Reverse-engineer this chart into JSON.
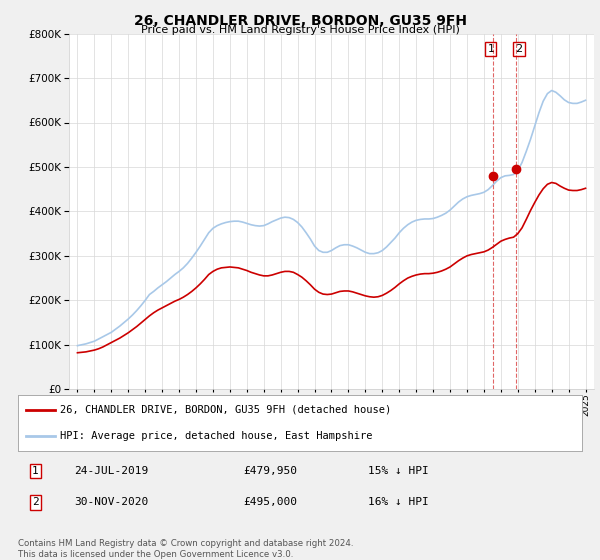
{
  "title": "26, CHANDLER DRIVE, BORDON, GU35 9FH",
  "subtitle": "Price paid vs. HM Land Registry's House Price Index (HPI)",
  "hpi_label": "HPI: Average price, detached house, East Hampshire",
  "price_label": "26, CHANDLER DRIVE, BORDON, GU35 9FH (detached house)",
  "legend1_date": "24-JUL-2019",
  "legend1_price": "£479,950",
  "legend1_hpi": "15% ↓ HPI",
  "legend2_date": "30-NOV-2020",
  "legend2_price": "£495,000",
  "legend2_hpi": "16% ↓ HPI",
  "footer": "Contains HM Land Registry data © Crown copyright and database right 2024.\nThis data is licensed under the Open Government Licence v3.0.",
  "hpi_color": "#a8c8e8",
  "price_color": "#cc0000",
  "vline_color": "#cc0000",
  "point1_x": 2019.56,
  "point1_y": 479950,
  "point2_x": 2020.92,
  "point2_y": 495000,
  "ylim": [
    0,
    800000
  ],
  "xlim_start": 1994.5,
  "xlim_end": 2025.5,
  "background_color": "#f0f0f0",
  "plot_background": "#ffffff",
  "hpi_x": [
    1995.0,
    1995.25,
    1995.5,
    1995.75,
    1996.0,
    1996.25,
    1996.5,
    1996.75,
    1997.0,
    1997.25,
    1997.5,
    1997.75,
    1998.0,
    1998.25,
    1998.5,
    1998.75,
    1999.0,
    1999.25,
    1999.5,
    1999.75,
    2000.0,
    2000.25,
    2000.5,
    2000.75,
    2001.0,
    2001.25,
    2001.5,
    2001.75,
    2002.0,
    2002.25,
    2002.5,
    2002.75,
    2003.0,
    2003.25,
    2003.5,
    2003.75,
    2004.0,
    2004.25,
    2004.5,
    2004.75,
    2005.0,
    2005.25,
    2005.5,
    2005.75,
    2006.0,
    2006.25,
    2006.5,
    2006.75,
    2007.0,
    2007.25,
    2007.5,
    2007.75,
    2008.0,
    2008.25,
    2008.5,
    2008.75,
    2009.0,
    2009.25,
    2009.5,
    2009.75,
    2010.0,
    2010.25,
    2010.5,
    2010.75,
    2011.0,
    2011.25,
    2011.5,
    2011.75,
    2012.0,
    2012.25,
    2012.5,
    2012.75,
    2013.0,
    2013.25,
    2013.5,
    2013.75,
    2014.0,
    2014.25,
    2014.5,
    2014.75,
    2015.0,
    2015.25,
    2015.5,
    2015.75,
    2016.0,
    2016.25,
    2016.5,
    2016.75,
    2017.0,
    2017.25,
    2017.5,
    2017.75,
    2018.0,
    2018.25,
    2018.5,
    2018.75,
    2019.0,
    2019.25,
    2019.5,
    2019.75,
    2020.0,
    2020.25,
    2020.5,
    2020.75,
    2021.0,
    2021.25,
    2021.5,
    2021.75,
    2022.0,
    2022.25,
    2022.5,
    2022.75,
    2023.0,
    2023.25,
    2023.5,
    2023.75,
    2024.0,
    2024.25,
    2024.5,
    2024.75,
    2025.0
  ],
  "hpi_y": [
    98000,
    100000,
    102000,
    105000,
    108000,
    113000,
    118000,
    123000,
    128000,
    135000,
    142000,
    150000,
    158000,
    167000,
    177000,
    188000,
    200000,
    213000,
    220000,
    228000,
    235000,
    242000,
    250000,
    258000,
    265000,
    273000,
    283000,
    295000,
    308000,
    322000,
    337000,
    352000,
    362000,
    368000,
    372000,
    375000,
    377000,
    378000,
    378000,
    376000,
    373000,
    370000,
    368000,
    367000,
    368000,
    372000,
    377000,
    381000,
    385000,
    387000,
    386000,
    382000,
    375000,
    365000,
    352000,
    338000,
    322000,
    312000,
    308000,
    308000,
    312000,
    318000,
    323000,
    325000,
    325000,
    322000,
    318000,
    313000,
    308000,
    305000,
    305000,
    307000,
    312000,
    320000,
    330000,
    340000,
    352000,
    362000,
    370000,
    376000,
    380000,
    382000,
    383000,
    383000,
    384000,
    387000,
    391000,
    396000,
    403000,
    412000,
    421000,
    428000,
    433000,
    436000,
    438000,
    440000,
    443000,
    449000,
    458000,
    468000,
    476000,
    480000,
    481000,
    483000,
    492000,
    510000,
    535000,
    562000,
    592000,
    622000,
    648000,
    665000,
    672000,
    668000,
    660000,
    651000,
    645000,
    643000,
    643000,
    646000,
    650000
  ],
  "price_x": [
    1995.0,
    1995.25,
    1995.5,
    1995.75,
    1996.0,
    1996.25,
    1996.5,
    1996.75,
    1997.0,
    1997.25,
    1997.5,
    1997.75,
    1998.0,
    1998.25,
    1998.5,
    1998.75,
    1999.0,
    1999.25,
    1999.5,
    1999.75,
    2000.0,
    2000.25,
    2000.5,
    2000.75,
    2001.0,
    2001.25,
    2001.5,
    2001.75,
    2002.0,
    2002.25,
    2002.5,
    2002.75,
    2003.0,
    2003.25,
    2003.5,
    2003.75,
    2004.0,
    2004.25,
    2004.5,
    2004.75,
    2005.0,
    2005.25,
    2005.5,
    2005.75,
    2006.0,
    2006.25,
    2006.5,
    2006.75,
    2007.0,
    2007.25,
    2007.5,
    2007.75,
    2008.0,
    2008.25,
    2008.5,
    2008.75,
    2009.0,
    2009.25,
    2009.5,
    2009.75,
    2010.0,
    2010.25,
    2010.5,
    2010.75,
    2011.0,
    2011.25,
    2011.5,
    2011.75,
    2012.0,
    2012.25,
    2012.5,
    2012.75,
    2013.0,
    2013.25,
    2013.5,
    2013.75,
    2014.0,
    2014.25,
    2014.5,
    2014.75,
    2015.0,
    2015.25,
    2015.5,
    2015.75,
    2016.0,
    2016.25,
    2016.5,
    2016.75,
    2017.0,
    2017.25,
    2017.5,
    2017.75,
    2018.0,
    2018.25,
    2018.5,
    2018.75,
    2019.0,
    2019.25,
    2019.5,
    2019.75,
    2020.0,
    2020.25,
    2020.5,
    2020.75,
    2021.0,
    2021.25,
    2021.5,
    2021.75,
    2022.0,
    2022.25,
    2022.5,
    2022.75,
    2023.0,
    2023.25,
    2023.5,
    2023.75,
    2024.0,
    2024.25,
    2024.5,
    2024.75,
    2025.0
  ],
  "price_y": [
    82000,
    83000,
    84000,
    86000,
    88000,
    91000,
    95000,
    100000,
    105000,
    110000,
    115000,
    121000,
    127000,
    134000,
    141000,
    149000,
    157000,
    165000,
    172000,
    178000,
    183000,
    188000,
    193000,
    198000,
    202000,
    207000,
    213000,
    220000,
    228000,
    237000,
    247000,
    258000,
    265000,
    270000,
    273000,
    274000,
    275000,
    274000,
    273000,
    270000,
    267000,
    263000,
    260000,
    257000,
    255000,
    255000,
    257000,
    260000,
    263000,
    265000,
    265000,
    263000,
    258000,
    252000,
    244000,
    235000,
    225000,
    218000,
    214000,
    213000,
    214000,
    217000,
    220000,
    221000,
    221000,
    219000,
    216000,
    213000,
    210000,
    208000,
    207000,
    208000,
    211000,
    216000,
    222000,
    229000,
    237000,
    244000,
    250000,
    254000,
    257000,
    259000,
    260000,
    260000,
    261000,
    263000,
    266000,
    270000,
    275000,
    282000,
    289000,
    295000,
    300000,
    303000,
    305000,
    307000,
    309000,
    313000,
    319000,
    326000,
    333000,
    337000,
    340000,
    342000,
    350000,
    363000,
    382000,
    402000,
    420000,
    437000,
    451000,
    461000,
    465000,
    463000,
    457000,
    452000,
    448000,
    447000,
    447000,
    449000,
    452000
  ]
}
